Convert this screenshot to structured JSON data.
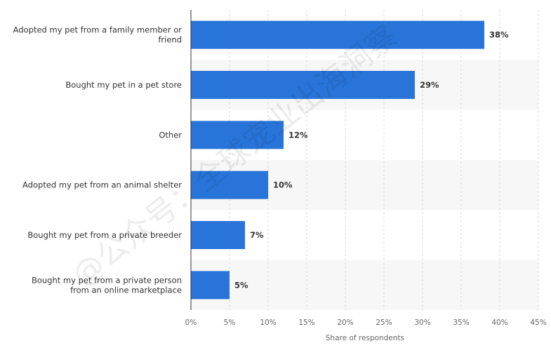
{
  "chart_data": {
    "type": "bar",
    "orientation": "horizontal",
    "categories": [
      [
        "Adopted my pet from a family member or",
        "friend"
      ],
      [
        "Bought my pet in a pet store"
      ],
      [
        "Other"
      ],
      [
        "Adopted my pet from an animal shelter"
      ],
      [
        "Bought my pet from a private breeder"
      ],
      [
        "Bought my pet from a private person",
        "from an online marketplace"
      ]
    ],
    "values": [
      38,
      29,
      12,
      10,
      7,
      5
    ],
    "value_labels": [
      "38%",
      "29%",
      "12%",
      "10%",
      "7%",
      "5%"
    ],
    "xlabel": "Share of respondents",
    "xlim": [
      0,
      45
    ],
    "x_ticks": [
      0,
      5,
      10,
      15,
      20,
      25,
      30,
      35,
      40,
      45
    ],
    "x_tick_labels": [
      "0%",
      "5%",
      "10%",
      "15%",
      "20%",
      "25%",
      "30%",
      "35%",
      "40%",
      "45%"
    ],
    "grid": "vertical dashed",
    "bar_color": "#2874d9",
    "band_color": "#f7f7f7"
  },
  "watermark": "@公众号：全球宠业出海洞察"
}
